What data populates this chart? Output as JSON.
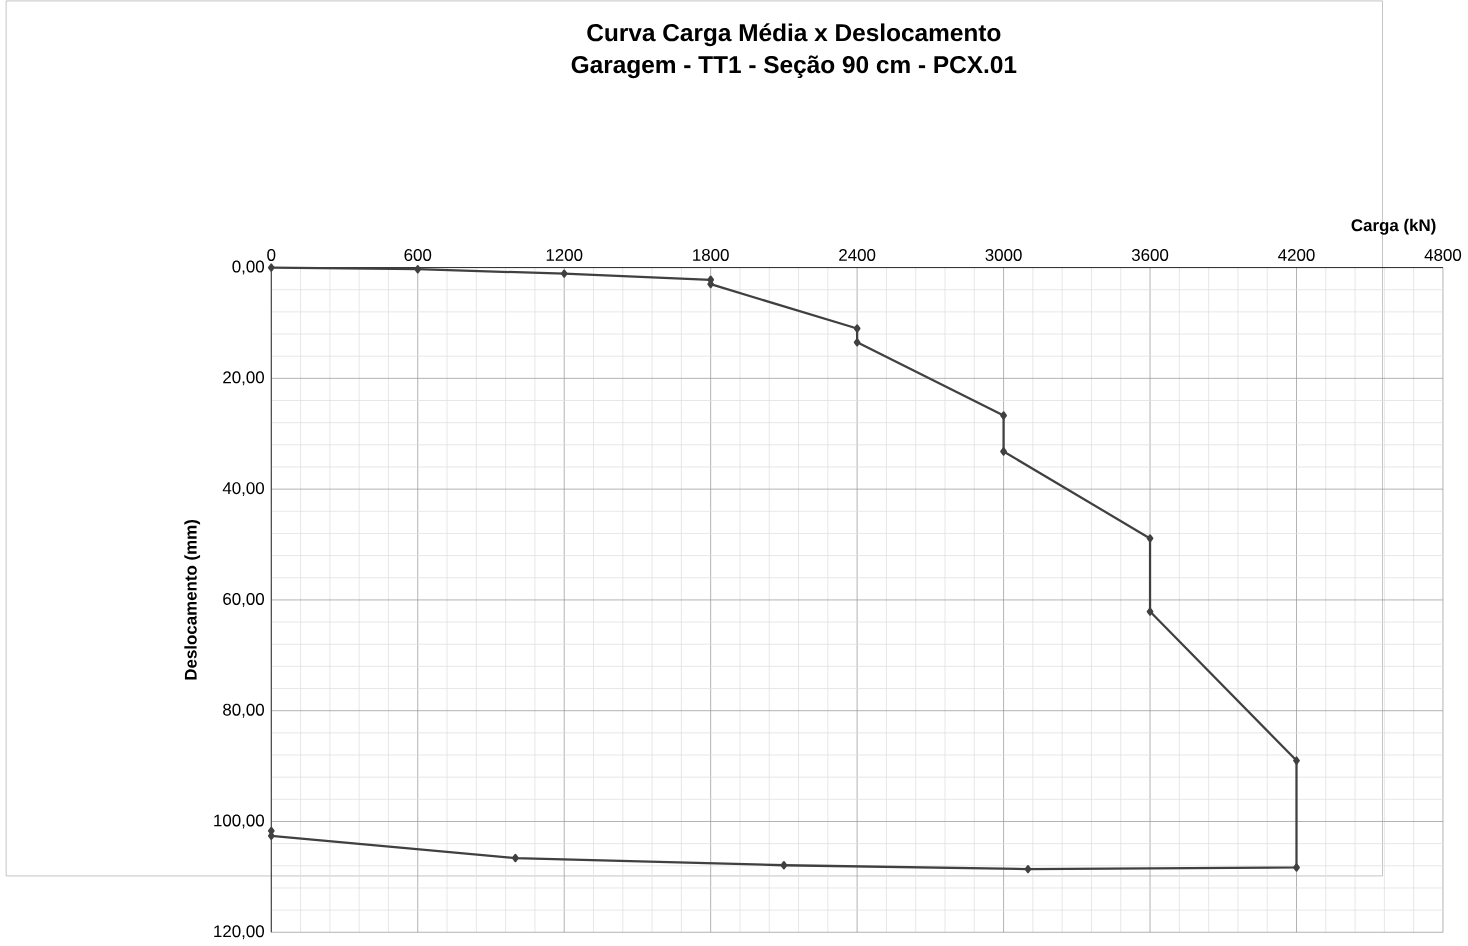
{
  "chart_data": {
    "type": "line",
    "title": "Curva Carga Média x Deslocamento\nGaragem - TT1 - Seção 90 cm - PCX.01",
    "xlabel": "Carga (kN)",
    "ylabel": "Deslocamento (mm)",
    "x": [
      0,
      600,
      1200,
      1800,
      1800,
      2400,
      2400,
      3000,
      3000,
      3600,
      3600,
      4200,
      4200,
      3100,
      2100,
      1000,
      0,
      0
    ],
    "values": [
      0,
      0.3,
      1.1,
      2.2,
      3.0,
      11.0,
      13.5,
      26.7,
      33.2,
      48.9,
      62.1,
      89.0,
      108.3,
      108.6,
      107.9,
      106.6,
      102.6,
      101.7
    ],
    "color": "#404040",
    "marker": "diamond",
    "line_style": "solid",
    "grid": true,
    "xlim": [
      0,
      4800
    ],
    "xticks": [
      0,
      600,
      1200,
      1800,
      2400,
      3000,
      3600,
      4200,
      4800
    ],
    "ylim": [
      120,
      0
    ],
    "yticks": [
      {
        "value": 0,
        "label": "0,00"
      },
      {
        "value": 20,
        "label": "20,00"
      },
      {
        "value": 40,
        "label": "40,00"
      },
      {
        "value": 60,
        "label": "60,00"
      },
      {
        "value": 80,
        "label": "80,00"
      },
      {
        "value": 100,
        "label": "100,00"
      },
      {
        "value": 120,
        "label": "120,00"
      }
    ]
  }
}
